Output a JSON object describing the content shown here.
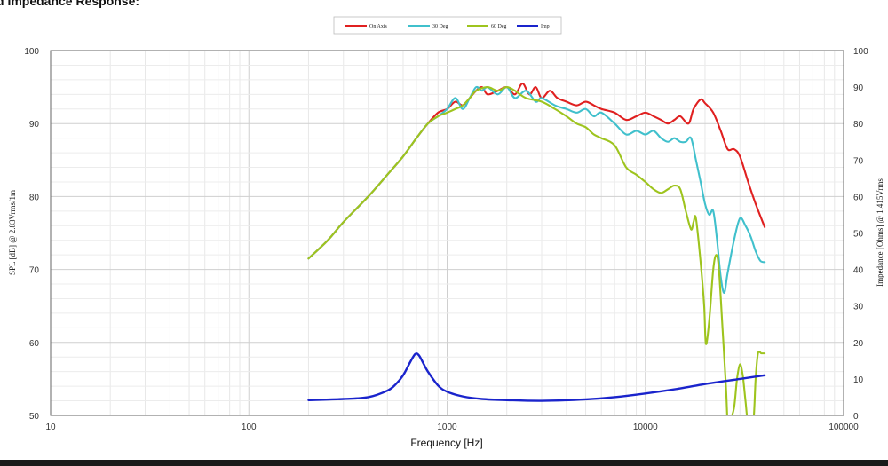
{
  "title": "d Impedance Response:",
  "chart_data": {
    "type": "line",
    "xlabel": "Frequency [Hz]",
    "ylabel_left": "SPL [dB] @ 2.83Vrms/1m",
    "ylabel_right": "Impedance [Ohms] @ 1.415Vrms",
    "x_scale": "log",
    "xlim": [
      10,
      100000
    ],
    "ylim_left": [
      50,
      100
    ],
    "ylim_right": [
      0,
      100
    ],
    "x_ticks": [
      10,
      100,
      1000,
      10000,
      100000
    ],
    "x_tick_labels": [
      "10",
      "100",
      "1000",
      "10000",
      "100000"
    ],
    "y_ticks_left": [
      "50",
      "60",
      "70",
      "80",
      "90",
      "100"
    ],
    "y_ticks_right": [
      "0",
      "10",
      "20",
      "30",
      "40",
      "50",
      "60",
      "70",
      "80",
      "90",
      "100"
    ],
    "grid": true,
    "legend_position": "top-center",
    "series": [
      {
        "name": "On Axis",
        "color": "#e02020",
        "axis": "left",
        "points": [
          [
            200,
            71.5
          ],
          [
            250,
            74
          ],
          [
            300,
            76.5
          ],
          [
            400,
            80
          ],
          [
            500,
            83
          ],
          [
            600,
            85.5
          ],
          [
            700,
            88
          ],
          [
            800,
            90
          ],
          [
            900,
            91.5
          ],
          [
            1000,
            92
          ],
          [
            1100,
            93
          ],
          [
            1200,
            92.5
          ],
          [
            1300,
            93.5
          ],
          [
            1400,
            94.5
          ],
          [
            1500,
            95
          ],
          [
            1600,
            94
          ],
          [
            1800,
            94.5
          ],
          [
            2000,
            95
          ],
          [
            2200,
            94
          ],
          [
            2400,
            95.5
          ],
          [
            2600,
            94
          ],
          [
            2800,
            95
          ],
          [
            3000,
            93.5
          ],
          [
            3300,
            94.5
          ],
          [
            3600,
            93.5
          ],
          [
            4000,
            93
          ],
          [
            4500,
            92.5
          ],
          [
            5000,
            93
          ],
          [
            5500,
            92.5
          ],
          [
            6000,
            92
          ],
          [
            7000,
            91.5
          ],
          [
            8000,
            90.5
          ],
          [
            9000,
            91
          ],
          [
            10000,
            91.5
          ],
          [
            11000,
            91
          ],
          [
            12000,
            90.5
          ],
          [
            13000,
            90
          ],
          [
            14000,
            90.5
          ],
          [
            15000,
            91
          ],
          [
            16500,
            90
          ],
          [
            17500,
            92
          ],
          [
            19000,
            93.3
          ],
          [
            20000,
            92.8
          ],
          [
            22000,
            91.5
          ],
          [
            24000,
            89
          ],
          [
            26000,
            86.5
          ],
          [
            28000,
            86.5
          ],
          [
            30000,
            85.5
          ],
          [
            33000,
            82
          ],
          [
            36000,
            79
          ],
          [
            40000,
            75.8
          ]
        ]
      },
      {
        "name": "30 Deg",
        "color": "#40c0cc",
        "axis": "left",
        "points": [
          [
            200,
            71.5
          ],
          [
            250,
            74
          ],
          [
            300,
            76.5
          ],
          [
            400,
            80
          ],
          [
            500,
            83
          ],
          [
            600,
            85.5
          ],
          [
            700,
            88
          ],
          [
            800,
            90
          ],
          [
            900,
            91
          ],
          [
            1000,
            92
          ],
          [
            1100,
            93.5
          ],
          [
            1200,
            92
          ],
          [
            1300,
            93.5
          ],
          [
            1400,
            95
          ],
          [
            1500,
            94.5
          ],
          [
            1600,
            95
          ],
          [
            1800,
            94
          ],
          [
            2000,
            95
          ],
          [
            2200,
            93.5
          ],
          [
            2500,
            94.5
          ],
          [
            2800,
            93
          ],
          [
            3000,
            93.5
          ],
          [
            3500,
            92.5
          ],
          [
            4000,
            92
          ],
          [
            4500,
            91.5
          ],
          [
            5000,
            92
          ],
          [
            5500,
            91
          ],
          [
            6000,
            91.5
          ],
          [
            7000,
            90
          ],
          [
            8000,
            88.5
          ],
          [
            9000,
            89
          ],
          [
            10000,
            88.5
          ],
          [
            11000,
            89
          ],
          [
            12000,
            88
          ],
          [
            13000,
            87.5
          ],
          [
            14000,
            88
          ],
          [
            15000,
            87.5
          ],
          [
            16000,
            87.5
          ],
          [
            17000,
            88
          ],
          [
            18000,
            85
          ],
          [
            19000,
            82
          ],
          [
            20000,
            79
          ],
          [
            21000,
            77.5
          ],
          [
            22000,
            78
          ],
          [
            23000,
            74
          ],
          [
            24000,
            69
          ],
          [
            25000,
            66.8
          ],
          [
            26000,
            69.5
          ],
          [
            28000,
            74
          ],
          [
            30000,
            77
          ],
          [
            32000,
            76
          ],
          [
            34000,
            74.5
          ],
          [
            36000,
            72.5
          ],
          [
            38000,
            71.2
          ],
          [
            40000,
            71
          ]
        ]
      },
      {
        "name": "60 Deg",
        "color": "#9ec41e",
        "axis": "left",
        "points": [
          [
            200,
            71.5
          ],
          [
            250,
            74
          ],
          [
            300,
            76.5
          ],
          [
            400,
            80
          ],
          [
            500,
            83
          ],
          [
            600,
            85.5
          ],
          [
            700,
            88
          ],
          [
            800,
            90
          ],
          [
            900,
            91
          ],
          [
            1000,
            91.5
          ],
          [
            1100,
            92
          ],
          [
            1200,
            92.5
          ],
          [
            1300,
            93.5
          ],
          [
            1400,
            94.5
          ],
          [
            1600,
            95
          ],
          [
            1800,
            94.5
          ],
          [
            2000,
            95
          ],
          [
            2200,
            94.5
          ],
          [
            2500,
            93.5
          ],
          [
            3000,
            93
          ],
          [
            3500,
            92
          ],
          [
            4000,
            91
          ],
          [
            4500,
            90
          ],
          [
            5000,
            89.5
          ],
          [
            5500,
            88.5
          ],
          [
            6000,
            88
          ],
          [
            7000,
            87
          ],
          [
            8000,
            84
          ],
          [
            9000,
            83
          ],
          [
            10000,
            82
          ],
          [
            11000,
            81
          ],
          [
            12000,
            80.5
          ],
          [
            13000,
            81
          ],
          [
            14000,
            81.5
          ],
          [
            15000,
            81
          ],
          [
            16000,
            78
          ],
          [
            17000,
            75.5
          ],
          [
            17500,
            76.5
          ],
          [
            18000,
            77
          ],
          [
            19000,
            71
          ],
          [
            19800,
            65
          ],
          [
            20200,
            59.8
          ],
          [
            21000,
            63
          ],
          [
            22000,
            70
          ],
          [
            22800,
            72
          ],
          [
            23500,
            70
          ],
          [
            24500,
            62
          ],
          [
            25500,
            54
          ],
          [
            26000,
            49
          ],
          [
            26500,
            49
          ],
          [
            28000,
            51
          ],
          [
            29000,
            55
          ],
          [
            30000,
            57
          ],
          [
            31000,
            55.5
          ],
          [
            32000,
            52
          ],
          [
            33000,
            49
          ],
          [
            35000,
            49
          ],
          [
            36000,
            55
          ],
          [
            37000,
            58.5
          ],
          [
            38500,
            58.5
          ],
          [
            40000,
            58.5
          ]
        ]
      },
      {
        "name": "Imp",
        "color": "#1a24cc",
        "axis": "right",
        "points": [
          [
            200,
            4.2
          ],
          [
            300,
            4.5
          ],
          [
            400,
            5
          ],
          [
            500,
            6.8
          ],
          [
            550,
            8.5
          ],
          [
            600,
            11
          ],
          [
            650,
            14.5
          ],
          [
            690,
            16.8
          ],
          [
            720,
            16.5
          ],
          [
            760,
            14.2
          ],
          [
            800,
            12
          ],
          [
            900,
            8.2
          ],
          [
            1000,
            6.5
          ],
          [
            1200,
            5.2
          ],
          [
            1500,
            4.5
          ],
          [
            2000,
            4.2
          ],
          [
            3000,
            4
          ],
          [
            5000,
            4.4
          ],
          [
            7000,
            5
          ],
          [
            10000,
            6
          ],
          [
            15000,
            7.4
          ],
          [
            20000,
            8.6
          ],
          [
            30000,
            10
          ],
          [
            40000,
            11
          ]
        ]
      }
    ]
  }
}
